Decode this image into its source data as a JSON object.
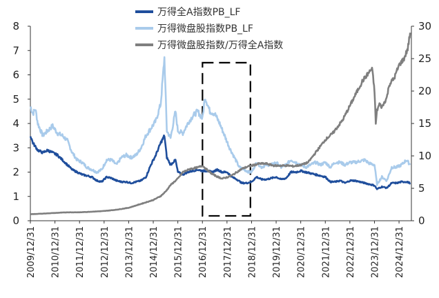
{
  "chart_data": {
    "type": "line",
    "title": "",
    "xlabel": "",
    "ylabel": "",
    "y_left": {
      "min": 0,
      "max": 8,
      "ticks": [
        "0",
        "1",
        "2",
        "3",
        "4",
        "5",
        "6",
        "7",
        "8"
      ]
    },
    "y_right": {
      "min": 0,
      "max": 30,
      "ticks": [
        "0",
        "5",
        "10",
        "15",
        "20",
        "25",
        "30"
      ]
    },
    "x_range": [
      2009.997,
      2025.5
    ],
    "x_tick_labels": [
      "2009/12/31",
      "2010/12/31",
      "2011/12/31",
      "2012/12/31",
      "2013/12/31",
      "2014/12/31",
      "2015/12/31",
      "2016/12/31",
      "2017/12/31",
      "2018/12/31",
      "2019/12/31",
      "2020/12/31",
      "2021/12/31",
      "2022/12/31",
      "2023/12/31",
      "2024/12/31"
    ],
    "legend": {
      "placement": "top-center"
    },
    "series": [
      {
        "name": "万得全A指数PB_LF",
        "axis": "left",
        "color": "#1f4e9c",
        "points": [
          [
            2010.0,
            3.5
          ],
          [
            2010.1,
            3.2
          ],
          [
            2010.3,
            2.9
          ],
          [
            2010.5,
            2.8
          ],
          [
            2010.7,
            2.9
          ],
          [
            2010.9,
            2.8
          ],
          [
            2011.1,
            2.7
          ],
          [
            2011.3,
            2.5
          ],
          [
            2011.5,
            2.3
          ],
          [
            2011.7,
            2.1
          ],
          [
            2011.9,
            2.0
          ],
          [
            2012.1,
            1.9
          ],
          [
            2012.3,
            1.85
          ],
          [
            2012.5,
            1.8
          ],
          [
            2012.7,
            1.65
          ],
          [
            2012.9,
            1.6
          ],
          [
            2013.1,
            1.8
          ],
          [
            2013.3,
            1.75
          ],
          [
            2013.5,
            1.65
          ],
          [
            2013.7,
            1.6
          ],
          [
            2013.9,
            1.6
          ],
          [
            2014.1,
            1.55
          ],
          [
            2014.3,
            1.6
          ],
          [
            2014.5,
            1.65
          ],
          [
            2014.7,
            1.8
          ],
          [
            2014.9,
            2.3
          ],
          [
            2015.1,
            2.7
          ],
          [
            2015.3,
            3.2
          ],
          [
            2015.45,
            3.5
          ],
          [
            2015.55,
            2.6
          ],
          [
            2015.7,
            2.3
          ],
          [
            2015.9,
            2.5
          ],
          [
            2016.0,
            2.0
          ],
          [
            2016.2,
            1.9
          ],
          [
            2016.4,
            2.0
          ],
          [
            2016.6,
            2.05
          ],
          [
            2016.8,
            2.1
          ],
          [
            2017.0,
            2.05
          ],
          [
            2017.2,
            2.05
          ],
          [
            2017.4,
            2.0
          ],
          [
            2017.6,
            2.1
          ],
          [
            2017.8,
            2.0
          ],
          [
            2018.0,
            2.0
          ],
          [
            2018.2,
            1.8
          ],
          [
            2018.4,
            1.7
          ],
          [
            2018.6,
            1.55
          ],
          [
            2018.8,
            1.55
          ],
          [
            2019.0,
            1.6
          ],
          [
            2019.2,
            1.8
          ],
          [
            2019.4,
            1.7
          ],
          [
            2019.6,
            1.7
          ],
          [
            2019.8,
            1.75
          ],
          [
            2020.0,
            1.8
          ],
          [
            2020.2,
            1.7
          ],
          [
            2020.4,
            1.75
          ],
          [
            2020.6,
            2.0
          ],
          [
            2020.8,
            2.0
          ],
          [
            2021.0,
            2.05
          ],
          [
            2021.2,
            2.0
          ],
          [
            2021.4,
            1.95
          ],
          [
            2021.6,
            1.9
          ],
          [
            2021.8,
            1.85
          ],
          [
            2022.0,
            1.8
          ],
          [
            2022.2,
            1.6
          ],
          [
            2022.4,
            1.6
          ],
          [
            2022.6,
            1.65
          ],
          [
            2022.8,
            1.55
          ],
          [
            2023.0,
            1.65
          ],
          [
            2023.2,
            1.65
          ],
          [
            2023.4,
            1.6
          ],
          [
            2023.6,
            1.55
          ],
          [
            2023.8,
            1.5
          ],
          [
            2024.0,
            1.45
          ],
          [
            2024.1,
            1.3
          ],
          [
            2024.3,
            1.4
          ],
          [
            2024.5,
            1.35
          ],
          [
            2024.7,
            1.55
          ],
          [
            2024.9,
            1.55
          ],
          [
            2025.1,
            1.6
          ],
          [
            2025.3,
            1.6
          ],
          [
            2025.45,
            1.55
          ]
        ]
      },
      {
        "name": "万得微盘股指数PB_LF",
        "axis": "left",
        "color": "#a9cbeb",
        "points": [
          [
            2010.0,
            4.7
          ],
          [
            2010.1,
            4.4
          ],
          [
            2010.2,
            4.6
          ],
          [
            2010.3,
            4.0
          ],
          [
            2010.5,
            3.5
          ],
          [
            2010.7,
            3.7
          ],
          [
            2010.9,
            3.9
          ],
          [
            2011.1,
            3.6
          ],
          [
            2011.3,
            3.5
          ],
          [
            2011.5,
            3.3
          ],
          [
            2011.7,
            2.8
          ],
          [
            2011.9,
            2.5
          ],
          [
            2012.1,
            2.4
          ],
          [
            2012.3,
            2.2
          ],
          [
            2012.5,
            2.1
          ],
          [
            2012.7,
            2.0
          ],
          [
            2012.9,
            2.1
          ],
          [
            2013.1,
            2.5
          ],
          [
            2013.3,
            2.5
          ],
          [
            2013.5,
            2.3
          ],
          [
            2013.7,
            2.6
          ],
          [
            2013.9,
            2.7
          ],
          [
            2014.1,
            2.6
          ],
          [
            2014.3,
            2.7
          ],
          [
            2014.5,
            3.0
          ],
          [
            2014.7,
            3.5
          ],
          [
            2014.9,
            3.8
          ],
          [
            2015.1,
            4.1
          ],
          [
            2015.3,
            4.8
          ],
          [
            2015.45,
            6.7
          ],
          [
            2015.55,
            3.7
          ],
          [
            2015.7,
            3.4
          ],
          [
            2015.9,
            4.5
          ],
          [
            2016.0,
            3.7
          ],
          [
            2016.2,
            3.6
          ],
          [
            2016.4,
            4.0
          ],
          [
            2016.6,
            4.3
          ],
          [
            2016.8,
            4.5
          ],
          [
            2017.0,
            4.2
          ],
          [
            2017.1,
            5.1
          ],
          [
            2017.3,
            4.5
          ],
          [
            2017.5,
            4.4
          ],
          [
            2017.7,
            4.0
          ],
          [
            2017.9,
            3.5
          ],
          [
            2018.1,
            3.0
          ],
          [
            2018.3,
            2.6
          ],
          [
            2018.5,
            2.2
          ],
          [
            2018.7,
            2.1
          ],
          [
            2018.9,
            2.0
          ],
          [
            2019.0,
            2.0
          ],
          [
            2019.2,
            2.4
          ],
          [
            2019.4,
            2.2
          ],
          [
            2019.6,
            2.3
          ],
          [
            2019.8,
            2.3
          ],
          [
            2020.0,
            2.4
          ],
          [
            2020.2,
            2.2
          ],
          [
            2020.4,
            2.3
          ],
          [
            2020.6,
            2.5
          ],
          [
            2020.8,
            2.4
          ],
          [
            2021.0,
            2.3
          ],
          [
            2021.2,
            2.2
          ],
          [
            2021.4,
            2.3
          ],
          [
            2021.6,
            2.4
          ],
          [
            2021.8,
            2.3
          ],
          [
            2022.0,
            2.4
          ],
          [
            2022.2,
            2.2
          ],
          [
            2022.4,
            2.4
          ],
          [
            2022.6,
            2.4
          ],
          [
            2022.8,
            2.3
          ],
          [
            2023.0,
            2.4
          ],
          [
            2023.2,
            2.4
          ],
          [
            2023.4,
            2.45
          ],
          [
            2023.6,
            2.5
          ],
          [
            2023.8,
            2.35
          ],
          [
            2024.0,
            2.3
          ],
          [
            2024.1,
            1.5
          ],
          [
            2024.3,
            1.8
          ],
          [
            2024.5,
            1.65
          ],
          [
            2024.7,
            2.2
          ],
          [
            2024.9,
            2.2
          ],
          [
            2025.1,
            2.3
          ],
          [
            2025.3,
            2.5
          ],
          [
            2025.45,
            2.3
          ]
        ]
      },
      {
        "name": "万得微盘股指数/万得全A指数",
        "axis": "right",
        "color": "#7f7f7f",
        "points": [
          [
            2010.0,
            1.0
          ],
          [
            2010.5,
            1.1
          ],
          [
            2011.0,
            1.2
          ],
          [
            2011.5,
            1.3
          ],
          [
            2012.0,
            1.3
          ],
          [
            2012.5,
            1.4
          ],
          [
            2013.0,
            1.5
          ],
          [
            2013.5,
            1.7
          ],
          [
            2014.0,
            2.0
          ],
          [
            2014.5,
            2.6
          ],
          [
            2015.0,
            3.2
          ],
          [
            2015.3,
            3.8
          ],
          [
            2015.5,
            4.5
          ],
          [
            2015.7,
            5.5
          ],
          [
            2016.0,
            6.5
          ],
          [
            2016.2,
            7.5
          ],
          [
            2016.5,
            8.0
          ],
          [
            2016.8,
            8.2
          ],
          [
            2017.0,
            8.5
          ],
          [
            2017.2,
            7.8
          ],
          [
            2017.4,
            7.2
          ],
          [
            2017.6,
            6.8
          ],
          [
            2017.8,
            6.5
          ],
          [
            2018.0,
            6.7
          ],
          [
            2018.2,
            7.0
          ],
          [
            2018.4,
            7.5
          ],
          [
            2018.6,
            8.0
          ],
          [
            2018.8,
            8.3
          ],
          [
            2019.0,
            8.5
          ],
          [
            2019.3,
            8.8
          ],
          [
            2019.6,
            8.8
          ],
          [
            2019.9,
            8.5
          ],
          [
            2020.2,
            8.5
          ],
          [
            2020.5,
            8.5
          ],
          [
            2020.7,
            8.4
          ],
          [
            2021.0,
            8.6
          ],
          [
            2021.3,
            9.0
          ],
          [
            2021.5,
            10.0
          ],
          [
            2021.7,
            11.0
          ],
          [
            2022.0,
            12.5
          ],
          [
            2022.3,
            13.5
          ],
          [
            2022.5,
            14.5
          ],
          [
            2022.7,
            15.5
          ],
          [
            2022.9,
            17.0
          ],
          [
            2023.1,
            18.5
          ],
          [
            2023.3,
            20.0
          ],
          [
            2023.5,
            21.5
          ],
          [
            2023.7,
            22.5
          ],
          [
            2023.9,
            23.5
          ],
          [
            2024.0,
            20.0
          ],
          [
            2024.05,
            15.0
          ],
          [
            2024.1,
            17.0
          ],
          [
            2024.2,
            18.0
          ],
          [
            2024.3,
            17.5
          ],
          [
            2024.5,
            19.0
          ],
          [
            2024.6,
            21.0
          ],
          [
            2024.8,
            22.0
          ],
          [
            2025.0,
            24.0
          ],
          [
            2025.2,
            25.0
          ],
          [
            2025.35,
            26.5
          ],
          [
            2025.45,
            29.0
          ]
        ]
      }
    ],
    "annotations": [
      {
        "type": "dashed-box",
        "x": [
          2017.0,
          2018.95
        ],
        "y_left": [
          0.2,
          6.5
        ],
        "color": "#000000"
      }
    ]
  }
}
